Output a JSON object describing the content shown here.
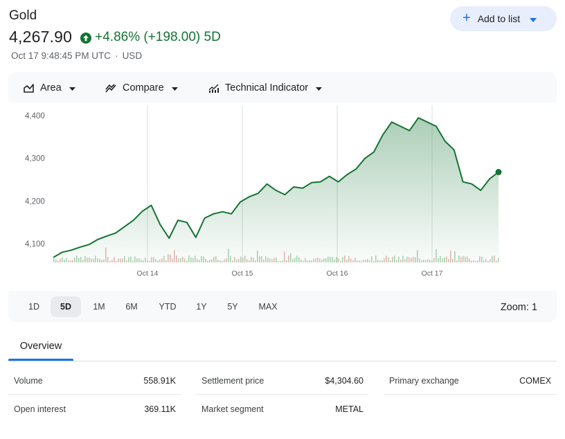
{
  "header": {
    "title": "Gold",
    "price": "4,267.90",
    "change": "+4.86% (+198.00) 5D",
    "timestamp": "Oct 17 9:48:45 PM UTC",
    "separator": "·",
    "currency": "USD",
    "add_label": "Add to list",
    "up_color": "#137333"
  },
  "toolbar": {
    "area": "Area",
    "compare": "Compare",
    "indicator": "Technical Indicator"
  },
  "chart_data": {
    "type": "area",
    "x_ticks": [
      "Oct 14",
      "Oct 15",
      "Oct 16",
      "Oct 17"
    ],
    "y_ticks": [
      "4,400",
      "4,300",
      "4,200",
      "4,100"
    ],
    "ylim": [
      4050,
      4420
    ],
    "grid": "vertical at day boundaries",
    "line_color": "#137333",
    "series": [
      {
        "x": [
          "Oct 13 start",
          "Oct 13",
          "Oct 13",
          "Oct 13",
          "Oct 13",
          "Oct 13",
          "Oct 13",
          "Oct 13 end",
          "Oct 14",
          "Oct 14",
          "Oct 14",
          "Oct 14",
          "Oct 14",
          "Oct 14",
          "Oct 14",
          "Oct 14",
          "Oct 14",
          "Oct 14",
          "Oct 14",
          "Oct 14",
          "Oct 15",
          "Oct 15",
          "Oct 15",
          "Oct 15",
          "Oct 15",
          "Oct 15",
          "Oct 15",
          "Oct 15",
          "Oct 15",
          "Oct 15",
          "Oct 16",
          "Oct 16",
          "Oct 16",
          "Oct 16",
          "Oct 16",
          "Oct 16",
          "Oct 16",
          "Oct 16",
          "Oct 16",
          "Oct 16",
          "Oct 17",
          "Oct 17",
          "Oct 17",
          "Oct 17",
          "Oct 17",
          "Oct 17",
          "Oct 17",
          "Oct 17",
          "Oct 17",
          "Oct 17",
          "Oct 17 last"
        ],
        "values": [
          4068,
          4080,
          4085,
          4092,
          4098,
          4110,
          4118,
          4125,
          4140,
          4155,
          4176,
          4190,
          4145,
          4113,
          4155,
          4150,
          4115,
          4160,
          4170,
          4175,
          4170,
          4198,
          4210,
          4218,
          4240,
          4225,
          4215,
          4233,
          4230,
          4243,
          4245,
          4258,
          4245,
          4262,
          4275,
          4300,
          4315,
          4355,
          4385,
          4375,
          4365,
          4395,
          4385,
          4375,
          4340,
          4320,
          4245,
          4240,
          4225,
          4252,
          4267.9
        ]
      }
    ]
  },
  "ranges": [
    "1D",
    "5D",
    "1M",
    "6M",
    "YTD",
    "1Y",
    "5Y",
    "MAX"
  ],
  "active_range": "5D",
  "zoom_label": "Zoom: 1",
  "overview": {
    "tab_label": "Overview",
    "rows": [
      {
        "label": "Volume",
        "value": "558.91K"
      },
      {
        "label": "Open interest",
        "value": "369.11K"
      },
      {
        "label": "Settlement price",
        "value": "$4,304.60"
      },
      {
        "label": "Market segment",
        "value": "METAL"
      },
      {
        "label": "Primary exchange",
        "value": "COMEX"
      }
    ]
  }
}
